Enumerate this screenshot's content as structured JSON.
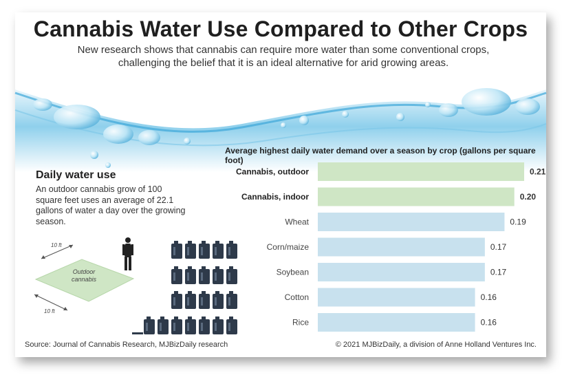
{
  "header": {
    "title": "Cannabis Water Use Compared to Other Crops",
    "subtitle": "New research shows that cannabis can require more water than some conventional crops, challenging the belief that it is an ideal alternative for arid growing areas."
  },
  "sidebar": {
    "title": "Daily water use",
    "text": "An outdoor cannabis grow of 100 square feet uses an average of 22.1 gallons of water a day over the growing season.",
    "plot_label": "Outdoor cannabis",
    "dimension_top": "10 ft",
    "dimension_bottom": "10 ft",
    "jug_count_full": 22,
    "jug_partial_fraction": 0.1
  },
  "chart_data": {
    "type": "bar",
    "orientation": "horizontal",
    "title": "Average highest daily water demand over a season by crop (gallons per square foot)",
    "categories": [
      "Cannabis, outdoor",
      "Cannabis, indoor",
      "Wheat",
      "Corn/maize",
      "Soybean",
      "Cotton",
      "Rice"
    ],
    "values": [
      0.21,
      0.2,
      0.19,
      0.17,
      0.17,
      0.16,
      0.16
    ],
    "value_labels": [
      "0.21",
      "0.20",
      "0.19",
      "0.17",
      "0.17",
      "0.16",
      "0.16"
    ],
    "highlight": [
      true,
      true,
      false,
      false,
      false,
      false,
      false
    ],
    "colors": {
      "highlight": "#cfe6c5",
      "normal": "#c8e1ee",
      "bold_label": "#222222",
      "normal_label": "#444444"
    },
    "xlim": [
      0,
      0.21
    ],
    "grid": false
  },
  "footer": {
    "source": "Source: Journal of Cannabis Research, MJBizDaily research",
    "copyright": "© 2021 MJBizDaily, a division of Anne Holland Ventures Inc."
  }
}
